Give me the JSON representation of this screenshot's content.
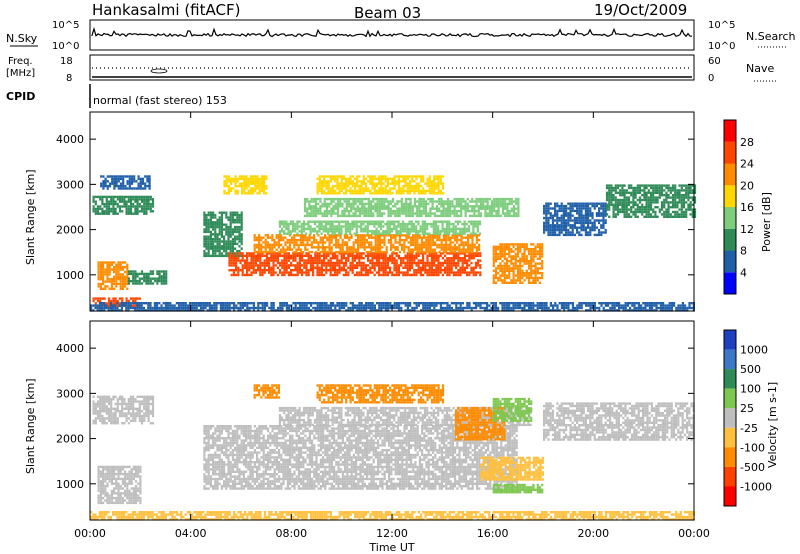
{
  "header": {
    "station": "Hankasalmi (fitACF)",
    "beam": "Beam 03",
    "date": "19/Oct/2009"
  },
  "nsky_panel": {
    "left_label": "N.Sky",
    "right_label": "N.Search",
    "left_ticks": [
      "10^5",
      "10^0"
    ],
    "right_ticks": [
      "10^5",
      "10^0"
    ]
  },
  "freq_panel": {
    "left_label_line1": "Freq.",
    "left_label_line2": "[MHz]",
    "right_label": "Nave",
    "left_ticks": [
      "18",
      "8"
    ],
    "right_ticks": [
      "60",
      "0"
    ]
  },
  "cpid_panel": {
    "label": "CPID",
    "mode_text": "normal (fast stereo) 153"
  },
  "colors": {
    "power_scale": [
      "#0000ff",
      "#1f5fa8",
      "#2e8b57",
      "#7ccd7c",
      "#ffd700",
      "#ff8c00",
      "#ff4500",
      "#ff0000"
    ],
    "velocity_scale": [
      "#1e3fbf",
      "#3b78c8",
      "#2e8b57",
      "#7ec850",
      "#bebebe",
      "#ffc040",
      "#ff8c00",
      "#ff4000",
      "#ff0000"
    ],
    "ground_scatter": "#bebebe"
  },
  "chart_data": [
    {
      "type": "heatmap",
      "name": "power",
      "ylabel": "Slant Range [km]",
      "yticks": [
        "1000",
        "2000",
        "3000",
        "4000"
      ],
      "ylim": [
        200,
        4600
      ],
      "xlim": [
        0,
        24
      ],
      "colorbar": {
        "title": "Power [dB]",
        "ticks": [
          "4",
          "8",
          "12",
          "16",
          "20",
          "24",
          "28"
        ],
        "range": [
          0,
          32
        ]
      },
      "regions": [
        {
          "t0": 0.1,
          "t1": 2.5,
          "r0": 2350,
          "r1": 2750,
          "level": 8
        },
        {
          "t0": 0.4,
          "t1": 2.4,
          "r0": 2900,
          "r1": 3200,
          "level": 6
        },
        {
          "t0": 0.3,
          "t1": 1.5,
          "r0": 700,
          "r1": 1300,
          "level": 22
        },
        {
          "t0": 0.1,
          "t1": 2.0,
          "r0": 300,
          "r1": 500,
          "level": 26
        },
        {
          "t0": 1.5,
          "t1": 3.0,
          "r0": 800,
          "r1": 1100,
          "level": 8
        },
        {
          "t0": 4.5,
          "t1": 6.0,
          "r0": 1400,
          "r1": 2400,
          "level": 10
        },
        {
          "t0": 5.5,
          "t1": 15.5,
          "r0": 1000,
          "r1": 1500,
          "level": 27
        },
        {
          "t0": 6.5,
          "t1": 15.5,
          "r0": 1500,
          "r1": 1900,
          "level": 20
        },
        {
          "t0": 7.5,
          "t1": 15.5,
          "r0": 1900,
          "r1": 2200,
          "level": 14
        },
        {
          "t0": 8.5,
          "t1": 17.0,
          "r0": 2300,
          "r1": 2700,
          "level": 14
        },
        {
          "t0": 9.0,
          "t1": 14.0,
          "r0": 2800,
          "r1": 3200,
          "level": 18
        },
        {
          "t0": 5.3,
          "t1": 7.0,
          "r0": 2800,
          "r1": 3200,
          "level": 16
        },
        {
          "t0": 16.0,
          "t1": 18.0,
          "r0": 800,
          "r1": 1700,
          "level": 20
        },
        {
          "t0": 18.0,
          "t1": 20.5,
          "r0": 1900,
          "r1": 2600,
          "level": 6
        },
        {
          "t0": 20.5,
          "t1": 24.0,
          "r0": 2300,
          "r1": 3000,
          "level": 8
        },
        {
          "t0": 0.0,
          "t1": 24.0,
          "r0": 200,
          "r1": 400,
          "level": 6
        }
      ]
    },
    {
      "type": "heatmap",
      "name": "velocity",
      "ylabel": "Slant Range [km]",
      "yticks": [
        "1000",
        "2000",
        "3000",
        "4000"
      ],
      "ylim": [
        200,
        4600
      ],
      "xlim": [
        0,
        24
      ],
      "xlabel": "Time UT",
      "xticks": [
        "00:00",
        "04:00",
        "08:00",
        "12:00",
        "16:00",
        "20:00",
        "00:00"
      ],
      "colorbar": {
        "title": "Velocity [m s-1]",
        "ticks": [
          "1000",
          "500",
          "100",
          "25",
          "-25",
          "-100",
          "-500",
          "-1000"
        ]
      },
      "regions": [
        {
          "t0": 0.1,
          "t1": 2.5,
          "r0": 2350,
          "r1": 2950,
          "level": 0
        },
        {
          "t0": 0.3,
          "t1": 2.0,
          "r0": 600,
          "r1": 1400,
          "level": 0
        },
        {
          "t0": 4.5,
          "t1": 17.0,
          "r0": 900,
          "r1": 2300,
          "level": 0
        },
        {
          "t0": 7.5,
          "t1": 17.5,
          "r0": 2300,
          "r1": 2700,
          "level": 0
        },
        {
          "t0": 18.0,
          "t1": 24.0,
          "r0": 2000,
          "r1": 2800,
          "level": 0
        },
        {
          "t0": 9.0,
          "t1": 14.0,
          "r0": 2800,
          "r1": 3200,
          "level": -300
        },
        {
          "t0": 6.5,
          "t1": 7.5,
          "r0": 2900,
          "r1": 3200,
          "level": -200
        },
        {
          "t0": 14.5,
          "t1": 16.5,
          "r0": 2000,
          "r1": 2700,
          "level": -300
        },
        {
          "t0": 16.0,
          "t1": 17.5,
          "r0": 2400,
          "r1": 2900,
          "level": 60
        },
        {
          "t0": 15.5,
          "t1": 18.0,
          "r0": 1100,
          "r1": 1600,
          "level": -80
        },
        {
          "t0": 16.0,
          "t1": 18.0,
          "r0": 800,
          "r1": 1000,
          "level": 60
        },
        {
          "t0": 0.0,
          "t1": 24.0,
          "r0": 200,
          "r1": 400,
          "level": -60
        }
      ]
    }
  ]
}
